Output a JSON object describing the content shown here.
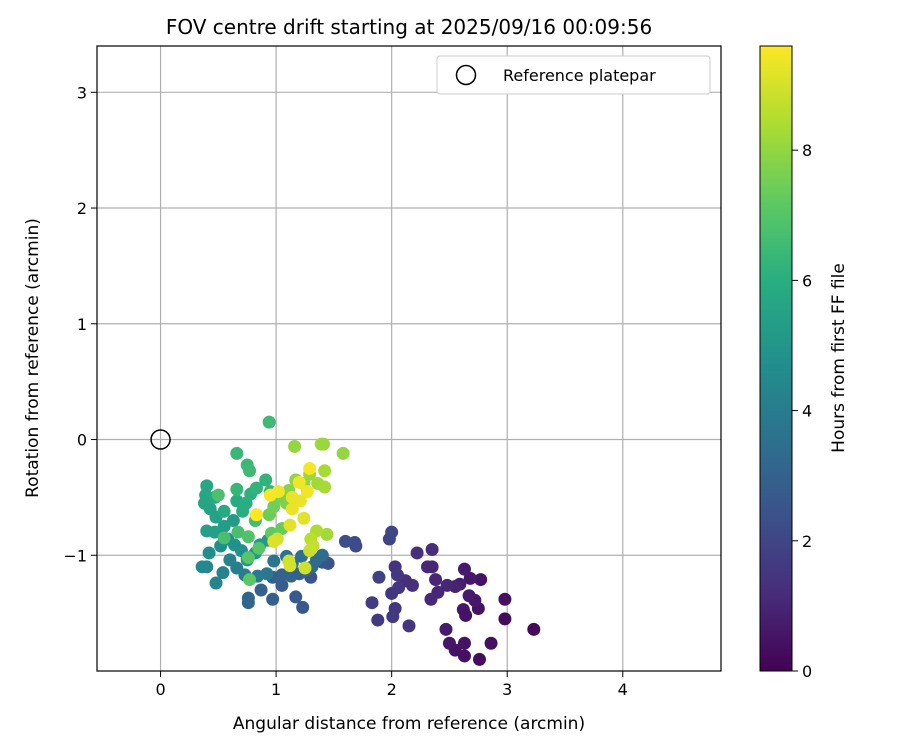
{
  "chart_data": {
    "type": "scatter",
    "title": "FOV centre drift starting at 2025/09/16 00:09:56",
    "xlabel": "Angular distance from reference (arcmin)",
    "ylabel": "Rotation from reference (arcmin)",
    "xlim": [
      -0.55,
      4.85
    ],
    "ylim": [
      -2.0,
      3.4
    ],
    "xticks": [
      0,
      1,
      2,
      3,
      4
    ],
    "yticks": [
      -1,
      0,
      1,
      2,
      3
    ],
    "grid": true,
    "legend": {
      "location": "upper right",
      "entries": [
        "Reference platepar"
      ]
    },
    "reference_point": {
      "label": "Reference platepar",
      "x": 0,
      "y": 0
    },
    "colorbar": {
      "label": "Hours from first FF file",
      "colormap": "viridis",
      "range": [
        0,
        9.6
      ],
      "ticks": [
        0,
        2,
        4,
        6,
        8
      ]
    },
    "series": [
      {
        "points": [
          [
            3.23,
            -1.64,
            0.2
          ],
          [
            2.76,
            -1.9,
            0.3
          ],
          [
            2.63,
            -1.87,
            0.4
          ],
          [
            2.55,
            -1.82,
            0.5
          ],
          [
            2.5,
            -1.76,
            0.6
          ],
          [
            2.63,
            -1.76,
            0.5
          ],
          [
            2.86,
            -1.76,
            0.4
          ],
          [
            2.47,
            -1.64,
            0.7
          ],
          [
            2.98,
            -1.55,
            0.3
          ],
          [
            2.98,
            -1.38,
            0.4
          ],
          [
            2.75,
            -1.46,
            0.5
          ],
          [
            2.62,
            -1.47,
            0.6
          ],
          [
            2.64,
            -1.52,
            0.5
          ],
          [
            2.72,
            -1.39,
            0.6
          ],
          [
            2.67,
            -1.35,
            0.7
          ],
          [
            2.77,
            -1.21,
            0.5
          ],
          [
            2.68,
            -1.2,
            0.6
          ],
          [
            2.63,
            -1.12,
            0.7
          ],
          [
            2.59,
            -1.25,
            0.8
          ],
          [
            2.55,
            -1.27,
            0.9
          ],
          [
            2.48,
            -1.26,
            1.0
          ],
          [
            2.4,
            -1.32,
            1.0
          ],
          [
            2.34,
            -1.38,
            1.1
          ],
          [
            2.38,
            -1.21,
            1.0
          ],
          [
            2.31,
            -1.1,
            1.1
          ],
          [
            2.35,
            -1.1,
            1.0
          ],
          [
            2.35,
            -0.95,
            1.2
          ],
          [
            2.22,
            -0.98,
            1.3
          ],
          [
            2.18,
            -1.26,
            1.3
          ],
          [
            2.12,
            -1.22,
            1.3
          ],
          [
            2.03,
            -1.1,
            1.4
          ],
          [
            2.05,
            -1.17,
            1.5
          ],
          [
            2.06,
            -1.28,
            1.5
          ],
          [
            2.0,
            -1.33,
            1.5
          ],
          [
            2.03,
            -1.46,
            1.5
          ],
          [
            2.01,
            -1.53,
            1.6
          ],
          [
            2.15,
            -1.61,
            1.5
          ],
          [
            1.88,
            -1.56,
            1.6
          ],
          [
            1.83,
            -1.41,
            1.7
          ],
          [
            1.89,
            -1.19,
            1.8
          ],
          [
            1.98,
            -0.86,
            1.9
          ],
          [
            2.0,
            -0.8,
            2.0
          ],
          [
            1.69,
            -0.92,
            2.1
          ],
          [
            1.68,
            -0.89,
            2.2
          ],
          [
            1.6,
            -0.88,
            2.3
          ],
          [
            1.45,
            -1.07,
            2.4
          ],
          [
            1.4,
            -1.06,
            2.5
          ],
          [
            1.3,
            -1.19,
            2.4
          ],
          [
            1.23,
            -1.45,
            2.6
          ],
          [
            1.17,
            -1.36,
            2.7
          ],
          [
            1.05,
            -1.26,
            2.8
          ],
          [
            0.97,
            -1.38,
            2.9
          ],
          [
            0.87,
            -1.3,
            3.0
          ],
          [
            0.76,
            -1.37,
            3.1
          ],
          [
            0.76,
            -1.41,
            3.2
          ],
          [
            0.97,
            -1.19,
            2.9
          ],
          [
            1.05,
            -1.17,
            3.0
          ],
          [
            1.13,
            -1.18,
            3.1
          ],
          [
            1.2,
            -1.16,
            3.0
          ],
          [
            1.26,
            -1.13,
            3.2
          ],
          [
            1.31,
            -1.1,
            3.3
          ],
          [
            1.35,
            -1.04,
            3.3
          ],
          [
            1.4,
            -1.0,
            3.4
          ],
          [
            1.22,
            -1.01,
            3.5
          ],
          [
            1.14,
            -1.07,
            3.5
          ],
          [
            1.09,
            -1.01,
            3.6
          ],
          [
            0.98,
            -1.05,
            3.7
          ],
          [
            0.92,
            -1.16,
            3.8
          ],
          [
            0.84,
            -1.18,
            3.9
          ],
          [
            0.73,
            -1.17,
            4.0
          ],
          [
            0.66,
            -1.11,
            4.1
          ],
          [
            0.6,
            -1.04,
            4.2
          ],
          [
            0.54,
            -1.15,
            4.2
          ],
          [
            0.48,
            -1.24,
            4.3
          ],
          [
            0.4,
            -1.1,
            4.4
          ],
          [
            0.36,
            -1.1,
            4.5
          ],
          [
            0.42,
            -0.98,
            4.6
          ],
          [
            0.52,
            -0.92,
            4.7
          ],
          [
            0.58,
            -0.86,
            4.7
          ],
          [
            0.64,
            -0.91,
            4.8
          ],
          [
            0.7,
            -0.96,
            4.8
          ],
          [
            0.75,
            -1.04,
            4.9
          ],
          [
            0.82,
            -0.98,
            5.0
          ],
          [
            0.86,
            -0.91,
            5.1
          ],
          [
            0.93,
            -0.87,
            5.1
          ],
          [
            0.63,
            -0.7,
            5.2
          ],
          [
            0.55,
            -0.75,
            5.3
          ],
          [
            0.47,
            -0.8,
            5.4
          ],
          [
            0.4,
            -0.79,
            5.4
          ],
          [
            0.48,
            -0.67,
            5.5
          ],
          [
            0.43,
            -0.6,
            5.5
          ],
          [
            0.38,
            -0.55,
            5.6
          ],
          [
            0.39,
            -0.48,
            5.7
          ],
          [
            0.4,
            -0.4,
            5.7
          ],
          [
            0.47,
            -0.5,
            5.8
          ],
          [
            0.55,
            -0.62,
            5.8
          ],
          [
            0.66,
            -0.53,
            5.9
          ],
          [
            0.71,
            -0.62,
            6.0
          ],
          [
            0.74,
            -0.55,
            6.0
          ],
          [
            0.78,
            -0.47,
            6.1
          ],
          [
            0.83,
            -0.42,
            6.2
          ],
          [
            0.91,
            -0.35,
            6.2
          ],
          [
            0.95,
            -0.45,
            6.3
          ],
          [
            0.66,
            -0.43,
            6.3
          ],
          [
            0.66,
            -0.12,
            6.4
          ],
          [
            0.75,
            -0.22,
            6.4
          ],
          [
            0.77,
            -0.27,
            6.5
          ],
          [
            0.94,
            0.15,
            6.5
          ],
          [
            0.82,
            -0.7,
            6.6
          ],
          [
            0.67,
            -0.8,
            6.7
          ],
          [
            0.55,
            -0.85,
            6.7
          ],
          [
            0.5,
            -0.48,
            6.8
          ],
          [
            0.76,
            -0.84,
            6.9
          ],
          [
            0.85,
            -0.94,
            7.0
          ],
          [
            0.76,
            -1.02,
            7.0
          ],
          [
            0.77,
            -1.21,
            7.1
          ],
          [
            0.96,
            -0.81,
            7.2
          ],
          [
            1.05,
            -0.77,
            7.3
          ],
          [
            0.94,
            -0.65,
            7.4
          ],
          [
            0.98,
            -0.58,
            7.5
          ],
          [
            1.04,
            -0.5,
            7.6
          ],
          [
            1.09,
            -0.55,
            7.7
          ],
          [
            1.11,
            -0.44,
            7.8
          ],
          [
            1.17,
            -0.35,
            7.9
          ],
          [
            1.24,
            -0.38,
            8.0
          ],
          [
            1.29,
            -0.3,
            8.1
          ],
          [
            1.36,
            -0.38,
            8.2
          ],
          [
            1.42,
            -0.27,
            8.3
          ],
          [
            1.42,
            -0.41,
            8.3
          ],
          [
            1.39,
            -0.04,
            8.2
          ],
          [
            1.41,
            -0.04,
            8.1
          ],
          [
            1.16,
            -0.06,
            8.0
          ],
          [
            1.58,
            -0.12,
            8.0
          ],
          [
            1.44,
            -0.82,
            8.2
          ],
          [
            1.35,
            -0.79,
            8.4
          ],
          [
            1.3,
            -0.86,
            8.6
          ],
          [
            1.32,
            -0.92,
            8.7
          ],
          [
            1.29,
            -0.96,
            8.8
          ],
          [
            1.25,
            -1.11,
            8.9
          ],
          [
            1.11,
            -1.05,
            8.9
          ],
          [
            1.12,
            -1.09,
            9.0
          ],
          [
            1.01,
            -0.86,
            9.0
          ],
          [
            0.98,
            -0.88,
            9.1
          ],
          [
            1.12,
            -0.74,
            9.2
          ],
          [
            1.24,
            -0.68,
            9.2
          ],
          [
            1.14,
            -0.6,
            9.3
          ],
          [
            1.21,
            -0.53,
            9.3
          ],
          [
            1.14,
            -0.5,
            9.3
          ],
          [
            1.02,
            -0.45,
            9.4
          ],
          [
            0.95,
            -0.48,
            9.5
          ],
          [
            1.29,
            -0.25,
            9.5
          ],
          [
            1.27,
            -0.45,
            9.4
          ],
          [
            1.2,
            -0.37,
            9.4
          ],
          [
            0.83,
            -0.65,
            9.6
          ]
        ]
      }
    ]
  }
}
